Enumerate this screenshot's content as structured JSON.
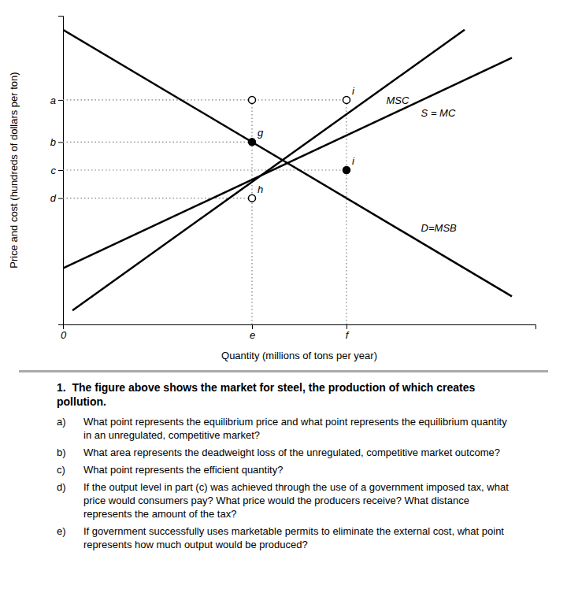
{
  "chart_data": {
    "type": "line",
    "xlabel": "Quantity (millions of tons per year)",
    "ylabel": "Price and cost (hundreds of dollars per ton)",
    "xlim": [
      0,
      10
    ],
    "ylim": [
      0,
      11
    ],
    "xticks": [
      0,
      {
        "value": 4.0,
        "label": "e"
      },
      {
        "value": 6.0,
        "label": "f"
      }
    ],
    "yticks": [
      {
        "value": 8.0,
        "label": "a"
      },
      {
        "value": 6.5,
        "label": "b"
      },
      {
        "value": 5.5,
        "label": "c"
      },
      {
        "value": 4.5,
        "label": "d"
      }
    ],
    "grid": false,
    "series": [
      {
        "name": "MSC",
        "color": "#000000",
        "x": [
          0.2,
          8.5
        ],
        "values": [
          0.5,
          10.5
        ]
      },
      {
        "name": "S = MC",
        "color": "#000000",
        "x": [
          0.0,
          9.5
        ],
        "values": [
          2.0,
          9.5
        ]
      },
      {
        "name": "D=MSB",
        "color": "#000000",
        "x": [
          0.0,
          9.5
        ],
        "values": [
          10.5,
          1.0
        ]
      }
    ],
    "reference_lines": {
      "color": "#808080",
      "line_style": "dotted",
      "segments": [
        {
          "x": [
            0,
            6.0
          ],
          "y": [
            8.0,
            8.0
          ]
        },
        {
          "x": [
            0,
            4.0
          ],
          "y": [
            6.5,
            6.5
          ]
        },
        {
          "x": [
            0,
            6.0
          ],
          "y": [
            5.5,
            5.5
          ]
        },
        {
          "x": [
            0,
            4.0
          ],
          "y": [
            4.5,
            4.5
          ]
        },
        {
          "x": [
            4.0,
            4.0
          ],
          "y": [
            0,
            8.0
          ]
        },
        {
          "x": [
            6.0,
            6.0
          ],
          "y": [
            0,
            8.0
          ]
        }
      ]
    },
    "point_sets": [
      {
        "marker": "open",
        "x": [
          4.0,
          4.0,
          6.0
        ],
        "y": [
          8.0,
          4.5,
          8.0
        ]
      },
      {
        "marker": "filled",
        "x": [
          4.0,
          6.0
        ],
        "y": [
          6.5,
          5.5
        ]
      }
    ],
    "point_labels": [
      {
        "label": "g",
        "x": 4.0,
        "y": 6.5
      },
      {
        "label": "h",
        "x": 4.0,
        "y": 4.5
      },
      {
        "label": "i",
        "x": 6.0,
        "y": 8.0
      },
      {
        "label": "i",
        "x": 6.0,
        "y": 5.5
      }
    ],
    "questions": {
      "intro": "1.  The figure above shows the market for steel, the production of which creates pollution.",
      "items": [
        {
          "label": "a)",
          "text": "What point represents the equilibrium price and what point represents the equilibrium quantity in an unregulated, competitive market?"
        },
        {
          "label": "b)",
          "text": "What area represents the deadweight loss of the unregulated, competitive market outcome?"
        },
        {
          "label": "c)",
          "text": "What point represents the efficient quantity?"
        },
        {
          "label": "d)",
          "text": "If the output level in part (c) was achieved through the use of a government imposed tax, what price would consumers pay? What price would the producers receive? What distance represents the amount of the tax?"
        },
        {
          "label": "e)",
          "text": "If government successfully uses marketable permits to eliminate the external cost, what point represents how much output would be produced?"
        }
      ]
    }
  }
}
